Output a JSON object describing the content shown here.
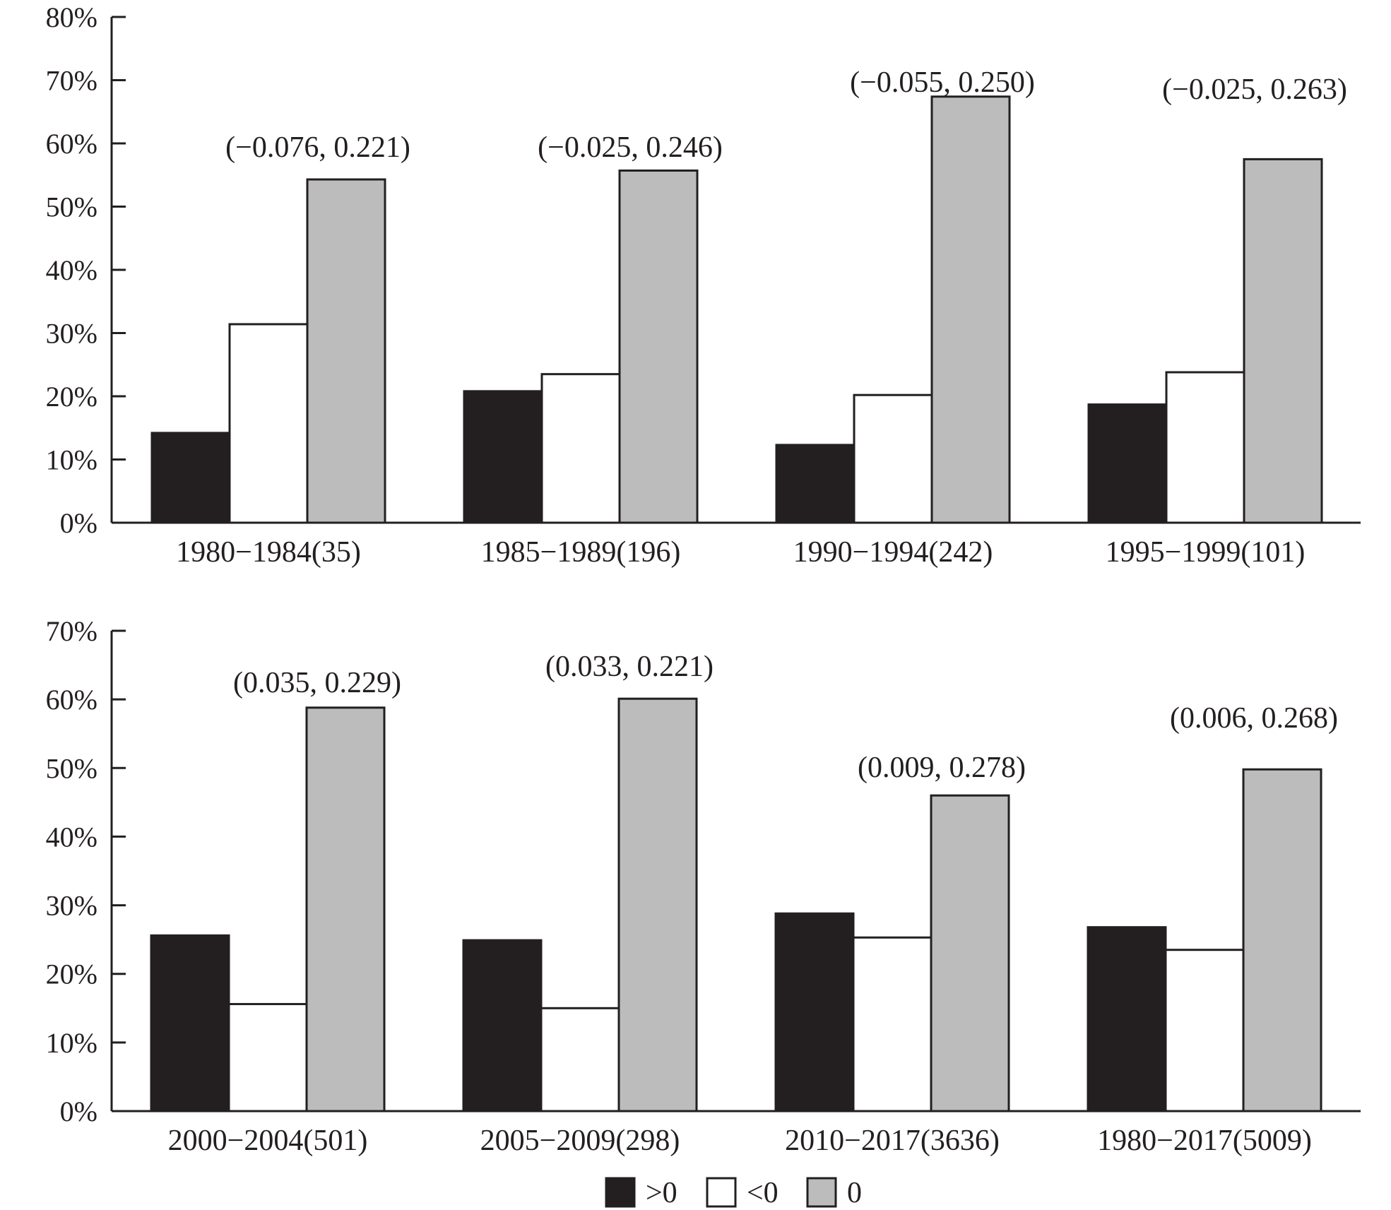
{
  "chart_data": [
    {
      "type": "bar",
      "categories": [
        "1980−1984(35)",
        "1985−1989(196)",
        "1990−1994(242)",
        "1995−1999(101)"
      ],
      "series": [
        {
          "name": ">0",
          "values": [
            14.2,
            20.8,
            12.3,
            18.7
          ]
        },
        {
          "name": "<0",
          "values": [
            31.4,
            23.5,
            20.2,
            23.8
          ]
        },
        {
          "name": "0",
          "values": [
            54.3,
            55.7,
            67.4,
            57.5
          ]
        }
      ],
      "annotations": [
        "(−0.076, 0.221)",
        "(−0.025, 0.246)",
        "(−0.055, 0.250)",
        "(−0.025, 0.263)"
      ],
      "yticks": [
        "0%",
        "10%",
        "20%",
        "30%",
        "40%",
        "50%",
        "60%",
        "70%",
        "80%"
      ],
      "ylim": [
        0,
        80
      ],
      "xlabel": "",
      "ylabel": ""
    },
    {
      "type": "bar",
      "categories": [
        "2000−2004(501)",
        "2005−2009(298)",
        "2010−2017(3636)",
        "1980−2017(5009)"
      ],
      "series": [
        {
          "name": ">0",
          "values": [
            25.6,
            24.9,
            28.8,
            26.8
          ]
        },
        {
          "name": "<0",
          "values": [
            15.6,
            15.0,
            25.3,
            23.5
          ]
        },
        {
          "name": "0",
          "values": [
            58.8,
            60.1,
            46.0,
            49.8
          ]
        }
      ],
      "annotations": [
        "(0.035, 0.229)",
        "(0.033, 0.221)",
        "(0.009, 0.278)",
        "(0.006, 0.268)"
      ],
      "yticks": [
        "0%",
        "10%",
        "20%",
        "30%",
        "40%",
        "50%",
        "60%",
        "70%"
      ],
      "ylim": [
        0,
        70
      ],
      "xlabel": "",
      "ylabel": ""
    }
  ],
  "legend": {
    "placement": "bottom-center",
    "items": [
      {
        "label": ">0",
        "color": "#231f20"
      },
      {
        "label": "<0",
        "color": "#ffffff"
      },
      {
        "label": "0",
        "color": "#bcbcbc"
      }
    ]
  },
  "colors": {
    "ink": "#231f20",
    "positive": "#231f20",
    "negative": "#ffffff",
    "zero": "#bcbcbc"
  }
}
